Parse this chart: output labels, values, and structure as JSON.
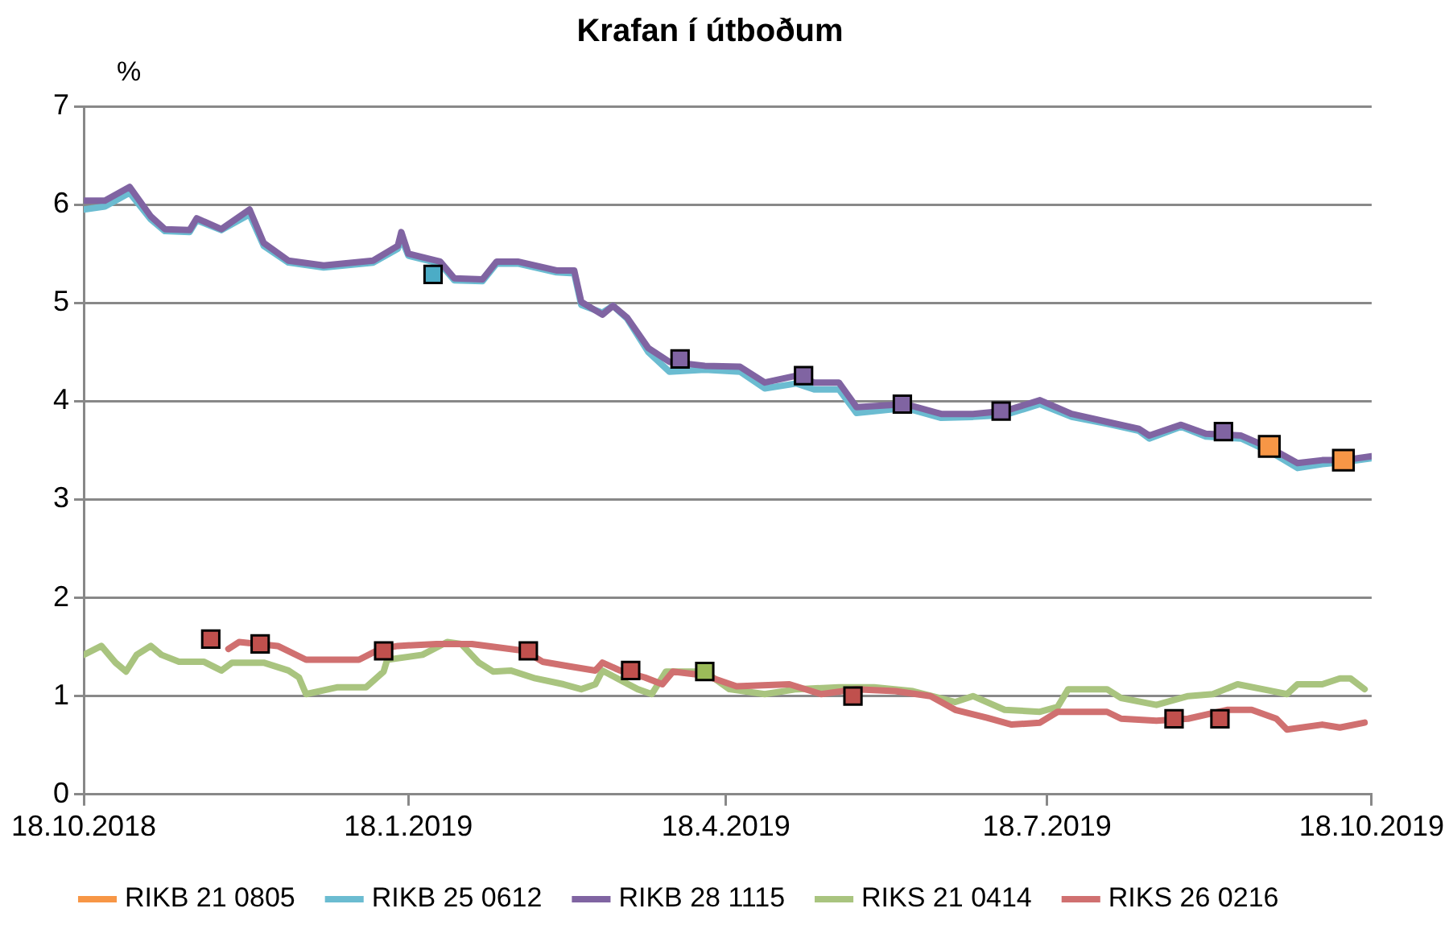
{
  "chart_data": {
    "type": "line",
    "title": "Krafan í útboðum",
    "ylabel": "%",
    "xlim": [
      "2018-10-18",
      "2019-10-18"
    ],
    "xticks": [
      {
        "value": "2018-10-18",
        "label": "18.10.2018"
      },
      {
        "value": "2019-01-18",
        "label": "18.1.2019"
      },
      {
        "value": "2019-04-18",
        "label": "18.4.2019"
      },
      {
        "value": "2019-07-18",
        "label": "18.7.2019"
      },
      {
        "value": "2019-10-18",
        "label": "18.10.2019"
      }
    ],
    "ylim": [
      0,
      7
    ],
    "yticks": [
      0,
      1,
      2,
      3,
      4,
      5,
      6,
      7
    ],
    "grid": "y",
    "legend": "bottom",
    "series": [
      {
        "name": "RIKB 21 0805",
        "type": "scatter",
        "marker": "square",
        "color": "#f79646",
        "x": [
          "2019-09-19",
          "2019-10-10"
        ],
        "values": [
          3.54,
          3.4
        ]
      },
      {
        "name": "RIKB 25 0612",
        "type": "line",
        "marker": "none",
        "color": "#6bbcd1",
        "x": [
          "2018-10-18",
          "2018-10-24",
          "2018-10-31",
          "2018-11-06",
          "2018-11-10",
          "2018-11-17",
          "2018-11-19",
          "2018-11-26",
          "2018-12-04",
          "2018-12-08",
          "2018-12-15",
          "2018-12-25",
          "2019-01-08",
          "2019-01-15",
          "2019-01-16",
          "2019-01-18",
          "2019-01-27",
          "2019-01-31",
          "2019-02-08",
          "2019-02-12",
          "2019-02-18",
          "2019-03-01",
          "2019-03-06",
          "2019-03-08",
          "2019-03-14",
          "2019-03-17",
          "2019-03-21",
          "2019-03-27",
          "2019-04-02",
          "2019-04-12",
          "2019-04-22",
          "2019-04-29",
          "2019-05-08",
          "2019-05-13",
          "2019-05-20",
          "2019-05-25",
          "2019-06-08",
          "2019-06-18",
          "2019-06-27",
          "2019-07-06",
          "2019-07-16",
          "2019-07-25",
          "2019-08-04",
          "2019-08-13",
          "2019-08-16",
          "2019-08-25",
          "2019-09-01",
          "2019-09-11",
          "2019-09-20",
          "2019-09-27",
          "2019-10-04",
          "2019-10-10",
          "2019-10-18"
        ],
        "values": [
          5.95,
          5.98,
          6.12,
          5.85,
          5.73,
          5.72,
          5.84,
          5.74,
          5.9,
          5.58,
          5.41,
          5.36,
          5.41,
          5.55,
          5.66,
          5.48,
          5.4,
          5.23,
          5.22,
          5.4,
          5.4,
          5.31,
          5.3,
          4.98,
          4.9,
          4.97,
          4.84,
          4.5,
          4.3,
          4.32,
          4.3,
          4.13,
          4.18,
          4.12,
          4.12,
          3.88,
          3.93,
          3.83,
          3.84,
          3.86,
          3.97,
          3.84,
          3.77,
          3.7,
          3.62,
          3.74,
          3.64,
          3.62,
          3.47,
          3.32,
          3.36,
          3.38,
          3.42
        ]
      },
      {
        "name": "RIKB 28 1115",
        "type": "line",
        "marker": "none",
        "color": "#8064a2",
        "x": [
          "2018-10-18",
          "2018-10-24",
          "2018-10-31",
          "2018-11-06",
          "2018-11-10",
          "2018-11-17",
          "2018-11-19",
          "2018-11-26",
          "2018-12-04",
          "2018-12-08",
          "2018-12-15",
          "2018-12-25",
          "2019-01-08",
          "2019-01-15",
          "2019-01-16",
          "2019-01-18",
          "2019-01-27",
          "2019-01-31",
          "2019-02-08",
          "2019-02-12",
          "2019-02-18",
          "2019-03-01",
          "2019-03-06",
          "2019-03-08",
          "2019-03-14",
          "2019-03-17",
          "2019-03-21",
          "2019-03-27",
          "2019-04-02",
          "2019-04-12",
          "2019-04-22",
          "2019-04-29",
          "2019-05-08",
          "2019-05-13",
          "2019-05-20",
          "2019-05-25",
          "2019-06-08",
          "2019-06-18",
          "2019-06-27",
          "2019-07-06",
          "2019-07-16",
          "2019-07-25",
          "2019-08-04",
          "2019-08-13",
          "2019-08-16",
          "2019-08-25",
          "2019-09-01",
          "2019-09-11",
          "2019-09-20",
          "2019-09-27",
          "2019-10-04",
          "2019-10-10",
          "2019-10-18"
        ],
        "values": [
          6.04,
          6.04,
          6.18,
          5.88,
          5.75,
          5.74,
          5.86,
          5.75,
          5.95,
          5.61,
          5.43,
          5.38,
          5.43,
          5.58,
          5.72,
          5.5,
          5.42,
          5.25,
          5.24,
          5.42,
          5.42,
          5.33,
          5.33,
          5.01,
          4.88,
          4.97,
          4.85,
          4.54,
          4.4,
          4.36,
          4.35,
          4.19,
          4.26,
          4.19,
          4.19,
          3.94,
          3.97,
          3.87,
          3.87,
          3.9,
          4.01,
          3.87,
          3.79,
          3.72,
          3.65,
          3.76,
          3.67,
          3.65,
          3.51,
          3.37,
          3.4,
          3.4,
          3.44
        ]
      },
      {
        "name": "RIKS 21 0414",
        "type": "line",
        "marker": "none",
        "color": "#a9c47f",
        "x": [
          "2018-10-18",
          "2018-10-23",
          "2018-10-27",
          "2018-10-30",
          "2018-11-02",
          "2018-11-06",
          "2018-11-09",
          "2018-11-14",
          "2018-11-21",
          "2018-11-26",
          "2018-11-29",
          "2018-12-08",
          "2018-12-15",
          "2018-12-18",
          "2018-12-20",
          "2018-12-29",
          "2019-01-06",
          "2019-01-11",
          "2019-01-12",
          "2019-01-22",
          "2019-01-29",
          "2019-02-02",
          "2019-02-07",
          "2019-02-11",
          "2019-02-16",
          "2019-02-23",
          "2019-03-03",
          "2019-03-08",
          "2019-03-12",
          "2019-03-14",
          "2019-03-24",
          "2019-03-28",
          "2019-04-01",
          "2019-04-12",
          "2019-04-19",
          "2019-04-29",
          "2019-05-08",
          "2019-05-20",
          "2019-05-30",
          "2019-06-10",
          "2019-06-22",
          "2019-06-27",
          "2019-07-06",
          "2019-07-16",
          "2019-07-21",
          "2019-07-24",
          "2019-08-04",
          "2019-08-08",
          "2019-08-18",
          "2019-08-27",
          "2019-09-03",
          "2019-09-10",
          "2019-09-20",
          "2019-09-24",
          "2019-09-27",
          "2019-10-04",
          "2019-10-09",
          "2019-10-12",
          "2019-10-16"
        ],
        "values": [
          1.42,
          1.51,
          1.34,
          1.25,
          1.42,
          1.51,
          1.42,
          1.35,
          1.35,
          1.26,
          1.34,
          1.34,
          1.26,
          1.19,
          1.02,
          1.09,
          1.09,
          1.25,
          1.37,
          1.42,
          1.55,
          1.53,
          1.34,
          1.25,
          1.26,
          1.18,
          1.12,
          1.07,
          1.12,
          1.26,
          1.07,
          1.02,
          1.25,
          1.25,
          1.07,
          1.02,
          1.07,
          1.09,
          1.09,
          1.05,
          0.94,
          1.0,
          0.86,
          0.84,
          0.89,
          1.07,
          1.07,
          0.98,
          0.91,
          1.0,
          1.02,
          1.12,
          1.05,
          1.02,
          1.12,
          1.12,
          1.18,
          1.18,
          1.07
        ]
      },
      {
        "name": "RIKS 26 0216",
        "type": "line",
        "marker": "none",
        "color": "#d07070",
        "x": [
          "2018-11-28",
          "2018-12-01",
          "2018-12-12",
          "2018-12-20",
          "2019-01-04",
          "2019-01-10",
          "2019-01-15",
          "2019-01-26",
          "2019-02-05",
          "2019-02-20",
          "2019-02-25",
          "2019-03-05",
          "2019-03-12",
          "2019-03-14",
          "2019-03-19",
          "2019-03-26",
          "2019-03-31",
          "2019-04-03",
          "2019-04-12",
          "2019-04-21",
          "2019-05-06",
          "2019-05-15",
          "2019-05-25",
          "2019-06-05",
          "2019-06-15",
          "2019-06-22",
          "2019-07-01",
          "2019-07-08",
          "2019-07-16",
          "2019-07-21",
          "2019-08-04",
          "2019-08-08",
          "2019-08-18",
          "2019-08-27",
          "2019-09-07",
          "2019-09-14",
          "2019-09-21",
          "2019-09-24",
          "2019-10-04",
          "2019-10-09",
          "2019-10-16"
        ],
        "values": [
          1.48,
          1.55,
          1.51,
          1.37,
          1.37,
          1.48,
          1.51,
          1.53,
          1.53,
          1.46,
          1.35,
          1.3,
          1.26,
          1.34,
          1.26,
          1.19,
          1.12,
          1.25,
          1.21,
          1.1,
          1.12,
          1.02,
          1.07,
          1.05,
          1.0,
          0.86,
          0.78,
          0.71,
          0.73,
          0.84,
          0.84,
          0.77,
          0.75,
          0.77,
          0.86,
          0.86,
          0.77,
          0.66,
          0.71,
          0.68,
          0.73
        ]
      },
      {
        "type": "scatter",
        "marker": "square",
        "color": "#4bacc6",
        "x": [
          "2019-01-25"
        ],
        "values": [
          5.29
        ]
      },
      {
        "type": "scatter",
        "marker": "square",
        "color": "#8064a2",
        "x": [
          "2019-04-05",
          "2019-05-10",
          "2019-06-07",
          "2019-07-05",
          "2019-09-06"
        ],
        "values": [
          4.43,
          4.26,
          3.97,
          3.9,
          3.69
        ]
      },
      {
        "type": "scatter",
        "marker": "square",
        "color": "#c0504d",
        "x": [
          "2018-11-23",
          "2018-12-07",
          "2019-01-11",
          "2019-02-21",
          "2019-03-22",
          "2019-05-24",
          "2019-08-23",
          "2019-09-05"
        ],
        "values": [
          1.58,
          1.53,
          1.46,
          1.46,
          1.26,
          1.0,
          0.77,
          0.77
        ]
      },
      {
        "type": "scatter",
        "marker": "square",
        "color": "#9bbb59",
        "x": [
          "2019-04-12"
        ],
        "values": [
          1.25
        ]
      }
    ]
  }
}
